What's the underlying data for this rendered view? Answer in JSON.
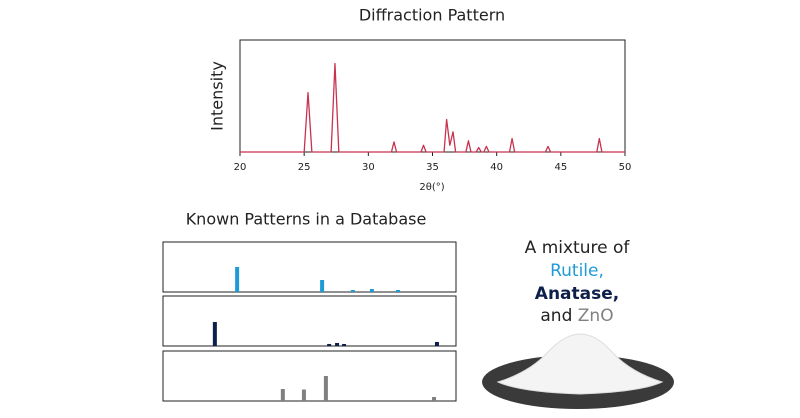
{
  "chart_data": [
    {
      "type": "line",
      "title": "Diffraction Pattern",
      "xlabel": "2θ(°)",
      "ylabel": "Intensity",
      "color": "#c8324e",
      "xlim": [
        20,
        50
      ],
      "xticks": [
        20,
        25,
        30,
        35,
        40,
        45,
        50
      ],
      "ylim": [
        0,
        100
      ],
      "x": [
        20,
        25.0,
        25.3,
        25.6,
        27.1,
        27.4,
        27.7,
        31.8,
        32.0,
        32.2,
        34.1,
        34.3,
        34.5,
        35.9,
        36.1,
        36.35,
        36.6,
        36.8,
        37.6,
        37.8,
        38.0,
        38.4,
        38.6,
        38.8,
        39.0,
        39.2,
        39.4,
        41.0,
        41.2,
        41.4,
        43.8,
        44.0,
        44.2,
        47.8,
        48.0,
        48.2,
        50
      ],
      "values": [
        0,
        0,
        53,
        0,
        0,
        79,
        0,
        0,
        9,
        0,
        0,
        6,
        0,
        0,
        29,
        6,
        18,
        0,
        0,
        10,
        0,
        0,
        4,
        0,
        0,
        5,
        0,
        0,
        12,
        0,
        0,
        5,
        0,
        0,
        12,
        0,
        0
      ]
    },
    {
      "type": "stick",
      "title": "Known Patterns in a Database",
      "xlim": [
        0,
        100
      ],
      "ylim": [
        0,
        100
      ],
      "series": [
        {
          "color": "#1e9ad6",
          "x": [
            25.3,
            54.3,
            64.8,
            71.3,
            80.2
          ],
          "values": [
            50,
            24,
            4,
            6,
            4
          ]
        },
        {
          "color": "#0d1f4a",
          "x": [
            17.7,
            56.7,
            59.4,
            61.8,
            93.5
          ],
          "values": [
            48,
            4,
            6,
            4,
            8
          ]
        },
        {
          "color": "#808080",
          "x": [
            40.9,
            48.1,
            55.6,
            92.5
          ],
          "values": [
            24,
            23,
            50,
            8
          ]
        }
      ]
    }
  ],
  "caption": {
    "line1": "A mixture of",
    "rutile": "Rutile,",
    "anatase": "Anatase,",
    "and": "and",
    "zno": "ZnO"
  }
}
